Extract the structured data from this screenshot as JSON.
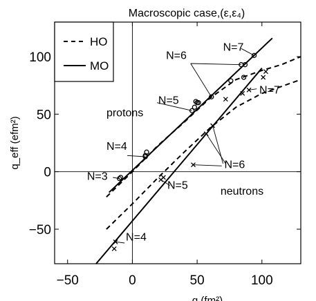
{
  "chart_data": {
    "type": "scatter",
    "title": "Macroscopic case,(ε,ε₄)",
    "xlabel": "q (fm²)",
    "ylabel": "q_eff (efm²)",
    "xlim": [
      -60,
      130
    ],
    "ylim": [
      -80,
      130
    ],
    "xticks": [
      -50,
      0,
      50,
      100
    ],
    "yticks": [
      -50,
      0,
      50,
      100
    ],
    "xtick_labels": [
      "−50",
      "0",
      "50",
      "100"
    ],
    "ytick_labels": [
      "−50",
      "0",
      "50",
      "100"
    ],
    "grid": false,
    "legend": {
      "position": "top-left",
      "entries": [
        {
          "label": "HO",
          "style": "dashed"
        },
        {
          "label": "MO",
          "style": "solid"
        }
      ]
    },
    "series": [
      {
        "group": "protons",
        "marker": "circle",
        "points": [
          [
            -9,
            -5
          ],
          [
            -10,
            -6
          ],
          [
            10,
            13
          ],
          [
            10,
            14
          ],
          [
            11,
            17
          ],
          [
            46,
            53
          ],
          [
            48,
            56
          ],
          [
            49,
            61
          ],
          [
            50,
            60
          ],
          [
            51,
            60
          ],
          [
            61,
            65
          ],
          [
            76,
            79
          ],
          [
            84,
            93
          ],
          [
            87,
            93
          ],
          [
            86,
            82
          ],
          [
            94,
            101
          ]
        ]
      },
      {
        "group": "neutrons",
        "marker": "cross",
        "points": [
          [
            -14,
            -67
          ],
          [
            -13,
            -61
          ],
          [
            22,
            -7
          ],
          [
            24,
            -5
          ],
          [
            47,
            6
          ],
          [
            57,
            33
          ],
          [
            62,
            40
          ],
          [
            72,
            63
          ],
          [
            85,
            68
          ],
          [
            90,
            71
          ],
          [
            101,
            82
          ],
          [
            103,
            87
          ]
        ]
      }
    ],
    "lines": [
      {
        "name": "MO",
        "group": "protons",
        "style": "solid",
        "points": [
          [
            -18,
            -18
          ],
          [
            108,
            116
          ]
        ]
      },
      {
        "name": "MO",
        "group": "neutrons",
        "style": "solid",
        "points": [
          [
            -28,
            -80
          ],
          [
            100,
            90
          ]
        ]
      },
      {
        "name": "HO",
        "group": "protons",
        "style": "dashed",
        "points": [
          [
            -20,
            -22
          ],
          [
            0,
            0
          ],
          [
            20,
            23
          ],
          [
            40,
            43
          ],
          [
            60,
            64
          ],
          [
            80,
            80
          ],
          [
            100,
            88
          ],
          [
            115,
            93
          ],
          [
            130,
            100
          ]
        ]
      },
      {
        "name": "HO",
        "group": "neutrons",
        "style": "dashed",
        "points": [
          [
            -20,
            -50
          ],
          [
            0,
            -28
          ],
          [
            20,
            -5
          ],
          [
            40,
            17
          ],
          [
            60,
            38
          ],
          [
            80,
            56
          ],
          [
            100,
            68
          ],
          [
            115,
            74
          ],
          [
            130,
            80
          ]
        ]
      }
    ],
    "annotations": [
      {
        "text": "protons",
        "x": -20,
        "y": 48
      },
      {
        "text": "neutrons",
        "x": 68,
        "y": -20
      },
      {
        "text": "N=3",
        "x": -35,
        "y": -7
      },
      {
        "text": "N=4",
        "x": -20,
        "y": 19
      },
      {
        "text": "N=5",
        "x": 20,
        "y": 59
      },
      {
        "text": "N=6",
        "x": 26,
        "y": 98
      },
      {
        "text": "N=7",
        "x": 70,
        "y": 105
      },
      {
        "text": "N=4",
        "x": -5,
        "y": -60
      },
      {
        "text": "N=5",
        "x": 27,
        "y": -15
      },
      {
        "text": "N=6",
        "x": 71,
        "y": 3
      },
      {
        "text": "N=7",
        "x": 98,
        "y": 68
      }
    ],
    "leaders": [
      {
        "from": [
          45,
          94
        ],
        "to": [
          61,
          65
        ]
      },
      {
        "from": [
          45,
          94
        ],
        "to": [
          84,
          93
        ]
      },
      {
        "from": [
          84,
          107
        ],
        "to": [
          94,
          101
        ]
      },
      {
        "from": [
          19,
          60
        ],
        "to": [
          46,
          53
        ]
      },
      {
        "from": [
          -4,
          14
        ],
        "to": [
          10,
          13
        ]
      },
      {
        "from": [
          -15,
          -5
        ],
        "to": [
          -10,
          -6
        ]
      },
      {
        "from": [
          72,
          7
        ],
        "to": [
          57,
          33
        ]
      },
      {
        "from": [
          70,
          7
        ],
        "to": [
          62,
          40
        ]
      },
      {
        "from": [
          69,
          5
        ],
        "to": [
          47,
          6
        ]
      },
      {
        "from": [
          96,
          72
        ],
        "to": [
          90,
          71
        ]
      },
      {
        "from": [
          29,
          -12
        ],
        "to": [
          22,
          -7
        ]
      },
      {
        "from": [
          -6,
          -62
        ],
        "to": [
          -13,
          -61
        ]
      }
    ]
  }
}
